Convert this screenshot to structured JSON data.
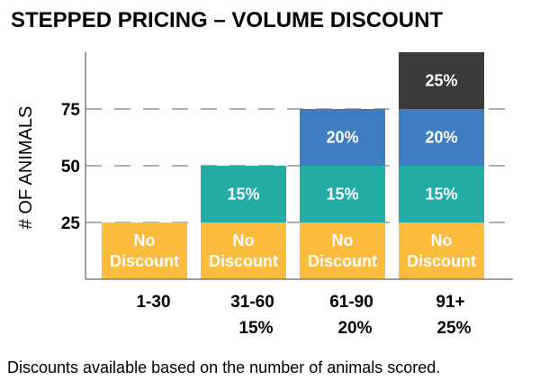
{
  "chart_data": {
    "type": "bar",
    "stacked": true,
    "title": "STEPPED PRICING – VOLUME DISCOUNT",
    "ylabel": "# OF ANIMALS",
    "xlabel": "",
    "ylim": [
      0,
      100
    ],
    "yticks": [
      25,
      50,
      75
    ],
    "grid": "dashed",
    "categories": [
      {
        "line1": "1-30",
        "line2": ""
      },
      {
        "line1": "31-60",
        "line2": "15%"
      },
      {
        "line1": "61-90",
        "line2": "20%"
      },
      {
        "line1": "91+",
        "line2": "25%"
      }
    ],
    "series": [
      {
        "label_lines": [
          "No",
          "Discount"
        ],
        "color": "#FBBB3C",
        "values": [
          25,
          25,
          25,
          25
        ]
      },
      {
        "label_lines": [
          "15%"
        ],
        "color": "#24ADA7",
        "values": [
          0,
          25,
          25,
          25
        ]
      },
      {
        "label_lines": [
          "20%"
        ],
        "color": "#3F7DC2",
        "values": [
          0,
          0,
          25,
          25
        ]
      },
      {
        "label_lines": [
          "25%"
        ],
        "color": "#3A3A3A",
        "values": [
          0,
          0,
          0,
          25
        ]
      }
    ],
    "caption": "Discounts available based on the number of animals scored.",
    "axis_color": "#7F7F7F",
    "grid_color": "#7F7F7F"
  }
}
